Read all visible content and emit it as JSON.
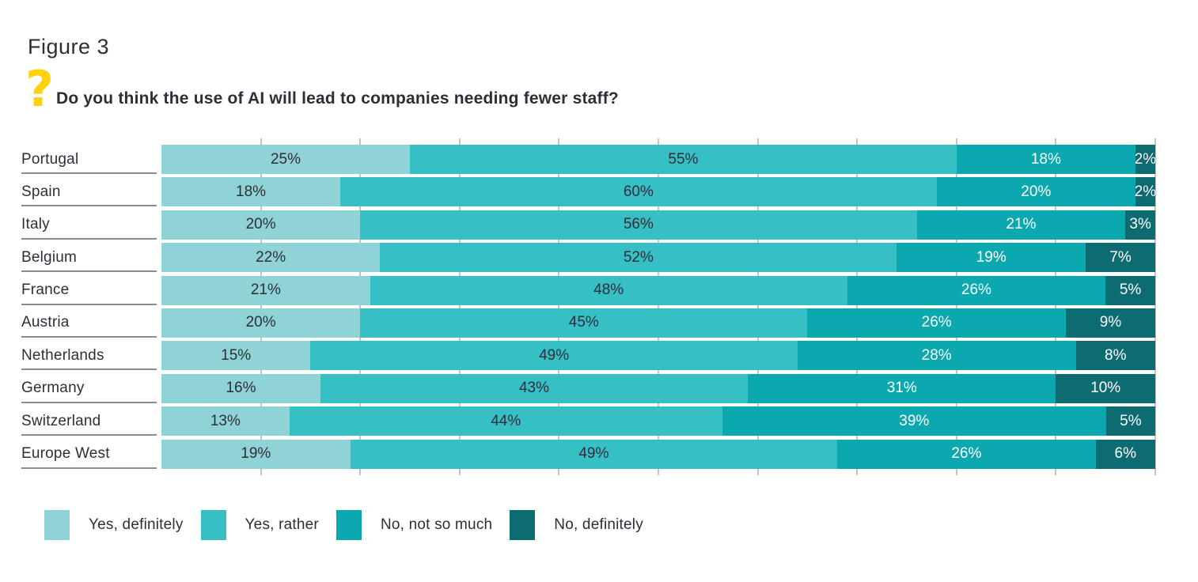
{
  "figure_label": "Figure 3",
  "question_mark": "?",
  "question": "Do you think the use of AI will lead to companies needing fewer staff?",
  "colors": {
    "text_dark": "#2e2e38",
    "accent_yellow": "#ffd20e",
    "underline_gray": "#8c8c8c",
    "gridline_gray": "#c4c4c4",
    "series": [
      "#8fd3d6",
      "#36bfc5",
      "#0ca8af",
      "#0c6c72"
    ]
  },
  "chart_data": {
    "type": "bar",
    "orientation": "horizontal",
    "stacked": true,
    "unit": "%",
    "title": "Do you think the use of AI will lead to companies needing fewer staff?",
    "categories": [
      "Portugal",
      "Spain",
      "Italy",
      "Belgium",
      "France",
      "Austria",
      "Netherlands",
      "Germany",
      "Switzerland",
      "Europe West"
    ],
    "series": [
      {
        "name": "Yes, definitely",
        "values": [
          25,
          18,
          20,
          22,
          21,
          20,
          15,
          16,
          13,
          19
        ]
      },
      {
        "name": "Yes, rather",
        "values": [
          55,
          60,
          56,
          52,
          48,
          45,
          49,
          43,
          44,
          49
        ]
      },
      {
        "name": "No, not so much",
        "values": [
          18,
          20,
          21,
          19,
          26,
          26,
          28,
          31,
          39,
          26
        ]
      },
      {
        "name": "No, definitely",
        "values": [
          2,
          2,
          3,
          7,
          5,
          9,
          8,
          10,
          5,
          6
        ]
      }
    ],
    "data_label_format": "{value}%",
    "xlim": [
      0,
      100
    ],
    "x_tick_interval_percent": 10,
    "legend": [
      "Yes, definitely",
      "Yes, rather",
      "No, not so much",
      "No, definitely"
    ],
    "legend_position": "bottom-left",
    "grid": "subtle-vertical-ticks"
  }
}
